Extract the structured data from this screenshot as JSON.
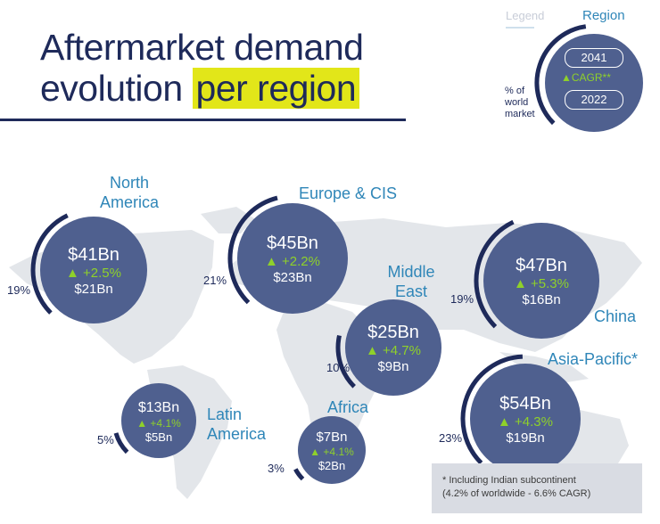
{
  "title": {
    "line1": "Aftermarket demand",
    "line2_plain": "evolution ",
    "line2_highlight": "per region"
  },
  "legend": {
    "label": "Legend",
    "region": "Region",
    "pill_top": "2041",
    "cagr": "CAGR**",
    "pill_bottom": "2022",
    "world_share_label": [
      "% of",
      "world",
      "market"
    ]
  },
  "colors": {
    "bubble": "#4f608f",
    "arc": "#1e2a5a",
    "cagr": "#8fd12a",
    "region_text": "#2f86b8",
    "map": "#e3e6ea",
    "highlight": "#e2e619"
  },
  "chart_data": {
    "type": "bubble",
    "title": "Aftermarket demand evolution per region",
    "regions": [
      {
        "name": "North America",
        "value_2041": "$41Bn",
        "cagr": "+2.5%",
        "value_2022": "$21Bn",
        "world_share": "19%",
        "value_2041_bn": 41,
        "cagr_pct": 2.5,
        "value_2022_bn": 21,
        "share_pct": 19
      },
      {
        "name": "Europe & CIS",
        "value_2041": "$45Bn",
        "cagr": "+2.2%",
        "value_2022": "$23Bn",
        "world_share": "21%",
        "value_2041_bn": 45,
        "cagr_pct": 2.2,
        "value_2022_bn": 23,
        "share_pct": 21
      },
      {
        "name": "Middle East",
        "value_2041": "$25Bn",
        "cagr": "+4.7%",
        "value_2022": "$9Bn",
        "world_share": "10%",
        "value_2041_bn": 25,
        "cagr_pct": 4.7,
        "value_2022_bn": 9,
        "share_pct": 10
      },
      {
        "name": "China",
        "value_2041": "$47Bn",
        "cagr": "+5.3%",
        "value_2022": "$16Bn",
        "world_share": "19%",
        "value_2041_bn": 47,
        "cagr_pct": 5.3,
        "value_2022_bn": 16,
        "share_pct": 19
      },
      {
        "name": "Latin America",
        "value_2041": "$13Bn",
        "cagr": "+4.1%",
        "value_2022": "$5Bn",
        "world_share": "5%",
        "value_2041_bn": 13,
        "cagr_pct": 4.1,
        "value_2022_bn": 5,
        "share_pct": 5
      },
      {
        "name": "Africa",
        "value_2041": "$7Bn",
        "cagr": "+4.1%",
        "value_2022": "$2Bn",
        "world_share": "3%",
        "value_2041_bn": 7,
        "cagr_pct": 4.1,
        "value_2022_bn": 2,
        "share_pct": 3
      },
      {
        "name": "Asia-Pacific*",
        "value_2041": "$54Bn",
        "cagr": "+4.3%",
        "value_2022": "$19Bn",
        "world_share": "23%",
        "value_2041_bn": 54,
        "cagr_pct": 4.3,
        "value_2022_bn": 19,
        "share_pct": 23
      }
    ]
  },
  "footnote": {
    "line1": "* Including Indian subcontinent",
    "line2": "(4.2% of worldwide - 6.6% CAGR)"
  }
}
